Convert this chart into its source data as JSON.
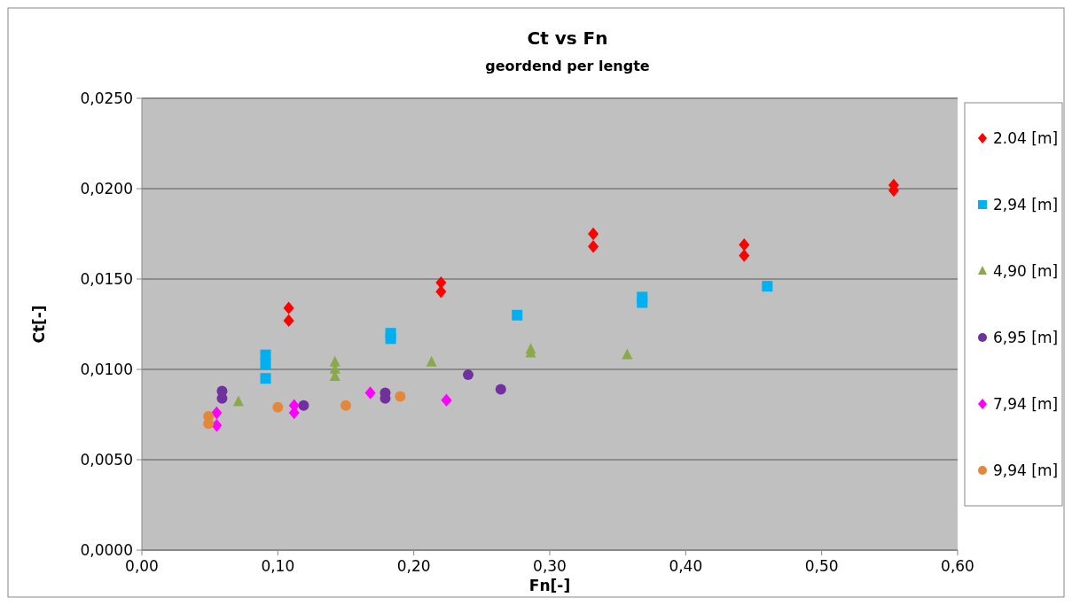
{
  "chart_data": {
    "type": "scatter",
    "title": "Ct vs Fn",
    "subtitle": "geordend per lengte",
    "xlabel": "Fn[-]",
    "ylabel": "Ct[-]",
    "xlim": [
      0,
      0.6
    ],
    "xticks": [
      {
        "value": 0,
        "label": "0,00"
      },
      {
        "value": 0.1,
        "label": "0,10"
      },
      {
        "value": 0.2,
        "label": "0,20"
      },
      {
        "value": 0.3,
        "label": "0,30"
      },
      {
        "value": 0.4,
        "label": "0,40"
      },
      {
        "value": 0.5,
        "label": "0,50"
      },
      {
        "value": 0.6,
        "label": "0,60"
      }
    ],
    "ylim": [
      0,
      0.025
    ],
    "yticks": [
      {
        "value": 0,
        "label": "0,0000"
      },
      {
        "value": 0.005,
        "label": "0,0050"
      },
      {
        "value": 0.01,
        "label": "0,0100"
      },
      {
        "value": 0.015,
        "label": "0,0150"
      },
      {
        "value": 0.02,
        "label": "0,0200"
      },
      {
        "value": 0.025,
        "label": "0,0250"
      }
    ],
    "grid": "y",
    "legend": "right",
    "series": [
      {
        "name": "2.04 [m]",
        "color": "#ff0000",
        "marker": "diamond",
        "x": [
          0.108,
          0.108,
          0.22,
          0.22,
          0.332,
          0.332,
          0.443,
          0.443,
          0.553,
          0.553
        ],
        "values": [
          0.0134,
          0.0127,
          0.0148,
          0.0143,
          0.0175,
          0.0168,
          0.0169,
          0.0163,
          0.0202,
          0.0199
        ]
      },
      {
        "name": "2,94 [m]",
        "color": "#00b0f0",
        "marker": "square",
        "x": [
          0.091,
          0.091,
          0.091,
          0.183,
          0.183,
          0.276,
          0.368,
          0.368,
          0.46
        ],
        "values": [
          0.0108,
          0.0103,
          0.0095,
          0.0117,
          0.012,
          0.013,
          0.0137,
          0.014,
          0.0146
        ]
      },
      {
        "name": "4,90 [m]",
        "color": "#8aa94a",
        "marker": "triangle",
        "x": [
          0.071,
          0.142,
          0.142,
          0.142,
          0.213,
          0.286,
          0.286,
          0.357
        ],
        "values": [
          0.0082,
          0.0104,
          0.01,
          0.0096,
          0.0104,
          0.0111,
          0.0109,
          0.0108
        ]
      },
      {
        "name": "6,95 [m]",
        "color": "#7030a0",
        "marker": "circle",
        "x": [
          0.059,
          0.059,
          0.119,
          0.179,
          0.179,
          0.24,
          0.264
        ],
        "values": [
          0.0088,
          0.0084,
          0.008,
          0.0087,
          0.0084,
          0.0097,
          0.0089
        ]
      },
      {
        "name": "7,94 [m]",
        "color": "#ff00ff",
        "marker": "diamond",
        "x": [
          0.055,
          0.055,
          0.112,
          0.112,
          0.168,
          0.224
        ],
        "values": [
          0.0076,
          0.0069,
          0.008,
          0.0076,
          0.0087,
          0.0083
        ]
      },
      {
        "name": "9,94 [m]",
        "color": "#e3873a",
        "marker": "circle",
        "x": [
          0.049,
          0.049,
          0.1,
          0.15,
          0.19
        ],
        "values": [
          0.0074,
          0.007,
          0.0079,
          0.008,
          0.0085
        ]
      }
    ]
  }
}
